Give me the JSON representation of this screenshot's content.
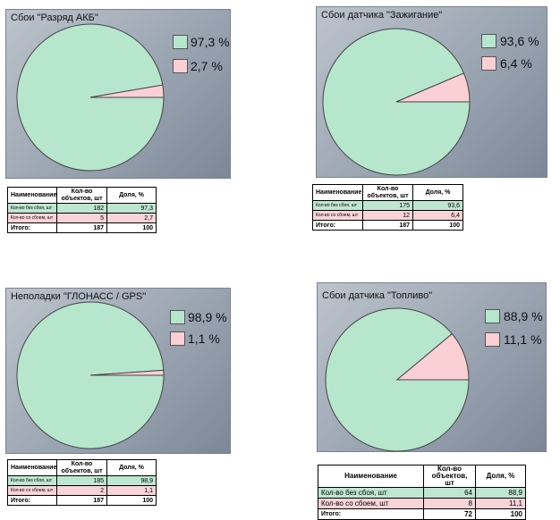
{
  "colors": {
    "ok": "#b6e6cc",
    "fail": "#fbd0d4",
    "line": "#444444"
  },
  "table_headers": {
    "name": "Наименование",
    "count": "Кол-во объектов, шт",
    "share": "Доля, %"
  },
  "chart_data": [
    {
      "type": "pie",
      "title": "Сбои  \"Разряд АКБ\"",
      "categories": [
        "97,3 %",
        "2,7 %"
      ],
      "values": [
        97.3,
        2.7
      ],
      "legend": "top-right",
      "table": {
        "rows": [
          {
            "label": "Кол-во без сбоя, шт",
            "count": "182",
            "share": "97,3"
          },
          {
            "label": "Кол-во со сбоем, шт",
            "count": "5",
            "share": "2,7"
          }
        ],
        "total": {
          "label": "Итого:",
          "count": "187",
          "share": "100"
        }
      }
    },
    {
      "type": "pie",
      "title": "Сбои датчика \"Зажигание\"",
      "categories": [
        "93,6 %",
        "6,4 %"
      ],
      "values": [
        93.6,
        6.4
      ],
      "legend": "top-right",
      "table": {
        "rows": [
          {
            "label": "Кол-во без сбоя, шт",
            "count": "175",
            "share": "93,6"
          },
          {
            "label": "Кол-во со сбоем, шт",
            "count": "12",
            "share": "6,4"
          }
        ],
        "total": {
          "label": "Итого:",
          "count": "187",
          "share": "100"
        }
      }
    },
    {
      "type": "pie",
      "title": "Неполадки \"ГЛОНАСС / GPS\"",
      "categories": [
        "98,9 %",
        "1,1 %"
      ],
      "values": [
        98.9,
        1.1
      ],
      "legend": "top-right",
      "table": {
        "rows": [
          {
            "label": "Кол-во без сбоя, шт",
            "count": "185",
            "share": "98,9"
          },
          {
            "label": "Кол-во со сбоем, шт",
            "count": "2",
            "share": "1,1"
          }
        ],
        "total": {
          "label": "Итого:",
          "count": "187",
          "share": "100"
        }
      }
    },
    {
      "type": "pie",
      "title": "Сбои датчика \"Топливо\"",
      "categories": [
        "88,9 %",
        "11,1 %"
      ],
      "values": [
        88.9,
        11.1
      ],
      "legend": "top-right",
      "table": {
        "rows": [
          {
            "label": "Кол-во без сбоя, шт",
            "count": "64",
            "share": "88,9"
          },
          {
            "label": "Кол-во со сбоем, шт",
            "count": "8",
            "share": "11,1"
          }
        ],
        "total": {
          "label": "Итого:",
          "count": "72",
          "share": "100"
        }
      }
    }
  ]
}
